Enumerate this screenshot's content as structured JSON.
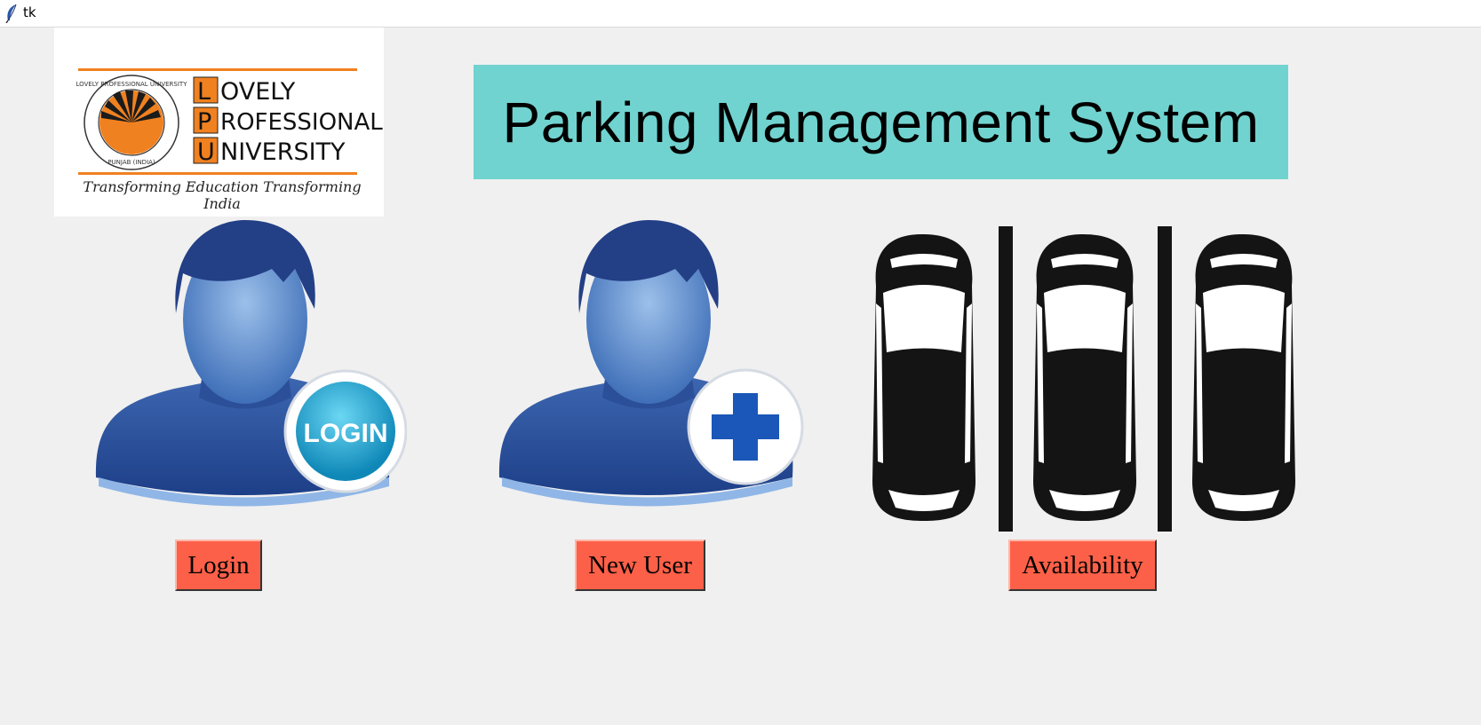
{
  "window": {
    "title": "tk",
    "icon": "feather-icon"
  },
  "logo": {
    "letters": [
      "L",
      "P",
      "U"
    ],
    "words": [
      "OVELY",
      "ROFESSIONAL",
      "NIVERSITY"
    ],
    "tagline": "Transforming Education Transforming India",
    "seal_top": "LOVELY PROFESSIONAL UNIVERSITY",
    "seal_bottom": "PUNJAB (INDIA)",
    "brand_color": "#f08120"
  },
  "header": {
    "title": "Parking Management System",
    "background": "#71d3cf"
  },
  "images": {
    "login": {
      "icon": "user-login-icon",
      "badge_text": "LOGIN"
    },
    "new_user": {
      "icon": "user-add-icon"
    },
    "availability": {
      "icon": "parked-cars-icon"
    }
  },
  "buttons": {
    "login": "Login",
    "new_user": "New User",
    "availability": "Availability",
    "color": "#fd6048"
  }
}
